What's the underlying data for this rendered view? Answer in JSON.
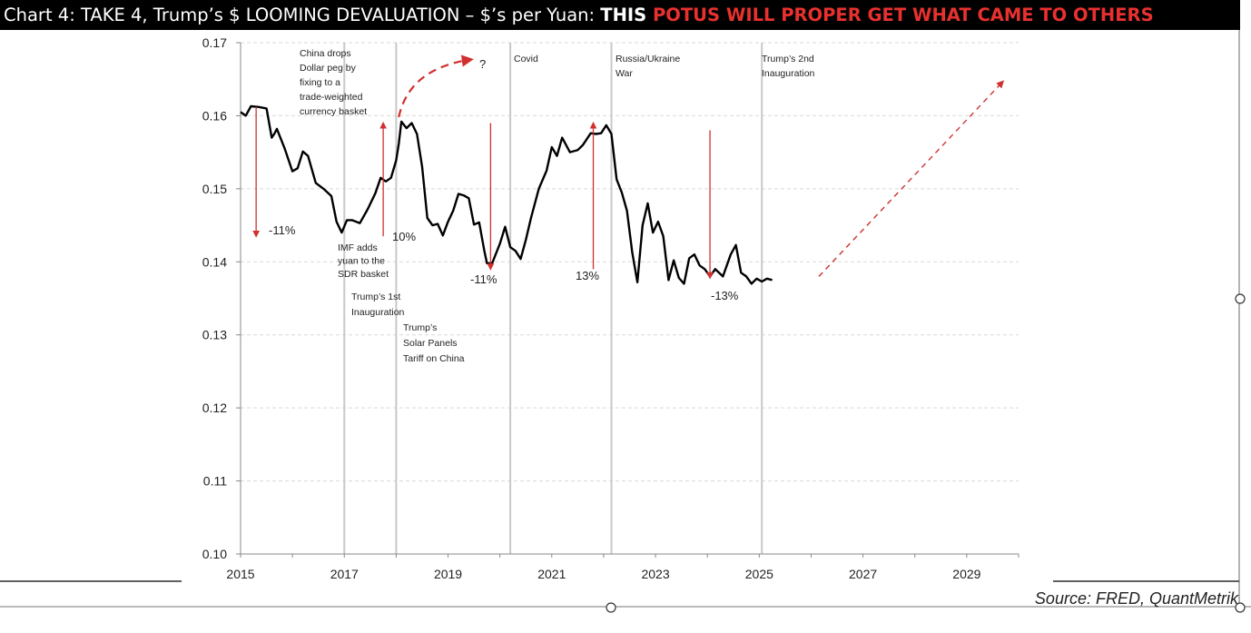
{
  "title": {
    "main": "Chart 4: TAKE 4, Trump’s $ LOOMING DEVALUATION – $’s per Yuan: ",
    "bold": "THIS ",
    "highlight": "POTUS WILL PROPER GET WHAT CAME TO OTHERS",
    "highlight_color": "#e8312f"
  },
  "source": "Source: FRED, QuantMetrik",
  "chart_data": {
    "type": "line",
    "title": "Chart 4: TAKE 4, Trump’s $ LOOMING DEVALUATION – $’s per Yuan",
    "ylim": [
      0.1,
      0.17
    ],
    "xlim": [
      2015,
      2030
    ],
    "yticks": [
      "0.10",
      "0.11",
      "0.12",
      "0.13",
      "0.14",
      "0.15",
      "0.16",
      "0.17"
    ],
    "xticks": [
      "2015",
      "2017",
      "2019",
      "2021",
      "2023",
      "2025",
      "2027",
      "2029"
    ],
    "grid": true,
    "line_color": "#000000",
    "arrow_color": "#d0302f",
    "series": [
      {
        "x": [
          2015.0,
          2015.1,
          2015.2,
          2015.35,
          2015.5,
          2015.6,
          2015.65,
          2015.7,
          2015.85,
          2016.0,
          2016.1,
          2016.2,
          2016.3,
          2016.45,
          2016.6,
          2016.75,
          2016.85,
          2016.95,
          2017.05,
          2017.15,
          2017.3,
          2017.45,
          2017.6,
          2017.7,
          2017.8,
          2017.9,
          2018.0,
          2018.05,
          2018.1,
          2018.2,
          2018.3,
          2018.4,
          2018.5,
          2018.6,
          2018.7,
          2018.8,
          2018.9,
          2019.0,
          2019.1,
          2019.2,
          2019.3,
          2019.4,
          2019.5,
          2019.6,
          2019.7,
          2019.75,
          2019.85,
          2020.0,
          2020.1,
          2020.2,
          2020.3,
          2020.4,
          2020.5,
          2020.6,
          2020.75,
          2020.9,
          2021.0,
          2021.1,
          2021.2,
          2021.35,
          2021.5,
          2021.6,
          2021.75,
          2021.85,
          2021.95,
          2022.05,
          2022.15,
          2022.25,
          2022.35,
          2022.45,
          2022.55,
          2022.65,
          2022.75,
          2022.85,
          2022.95,
          2023.05,
          2023.15,
          2023.25,
          2023.35,
          2023.45,
          2023.55,
          2023.65,
          2023.75,
          2023.85,
          2023.95,
          2024.05,
          2024.15,
          2024.3,
          2024.45,
          2024.55,
          2024.65,
          2024.75,
          2024.85,
          2024.95,
          2025.05,
          2025.15,
          2025.25
        ],
        "y": [
          0.1605,
          0.16,
          0.1613,
          0.1612,
          0.161,
          0.157,
          0.1575,
          0.1582,
          0.1555,
          0.1524,
          0.1528,
          0.1551,
          0.1545,
          0.1508,
          0.15,
          0.149,
          0.1455,
          0.144,
          0.1457,
          0.1457,
          0.1453,
          0.1472,
          0.1494,
          0.1515,
          0.151,
          0.1515,
          0.1539,
          0.1562,
          0.1592,
          0.1583,
          0.159,
          0.1575,
          0.153,
          0.146,
          0.145,
          0.1452,
          0.1436,
          0.1455,
          0.147,
          0.1493,
          0.1491,
          0.1487,
          0.1451,
          0.1454,
          0.1415,
          0.1398,
          0.1398,
          0.1425,
          0.1448,
          0.142,
          0.1415,
          0.1404,
          0.143,
          0.146,
          0.15,
          0.1525,
          0.1557,
          0.1545,
          0.157,
          0.155,
          0.1553,
          0.156,
          0.1576,
          0.1575,
          0.1576,
          0.1587,
          0.1575,
          0.1513,
          0.1495,
          0.147,
          0.1413,
          0.1372,
          0.145,
          0.148,
          0.144,
          0.1455,
          0.1435,
          0.1375,
          0.1402,
          0.1378,
          0.137,
          0.1405,
          0.141,
          0.1395,
          0.139,
          0.138,
          0.139,
          0.138,
          0.141,
          0.1423,
          0.1385,
          0.138,
          0.137,
          0.1377,
          0.1373,
          0.1377,
          0.1375
        ]
      }
    ],
    "events": [
      {
        "x": 2017.0,
        "lines": [
          "IMF adds",
          "yuan to the",
          "SDR basket"
        ]
      },
      {
        "x": 2018.0,
        "lines": [
          "Trump’s 1st",
          "Inauguration"
        ]
      },
      {
        "x": 2018.0,
        "lines": [
          "Trump’s",
          "Solar Panels",
          "Tariff on China"
        ]
      },
      {
        "x": 2020.2,
        "lines": [
          "Covid"
        ]
      },
      {
        "x": 2022.15,
        "lines": [
          "Russia/Ukraine",
          "War"
        ]
      },
      {
        "x": 2025.05,
        "lines": [
          "Trump’s 2nd",
          "Inauguration"
        ]
      }
    ],
    "china_drops_note": [
      "China drops",
      "Dollar peg by",
      "fixing to a",
      "trade-weighted",
      "currency basket"
    ],
    "question_mark": "?",
    "changes": [
      "-11%",
      "10%",
      "-11%",
      "13%",
      "-13%"
    ]
  }
}
